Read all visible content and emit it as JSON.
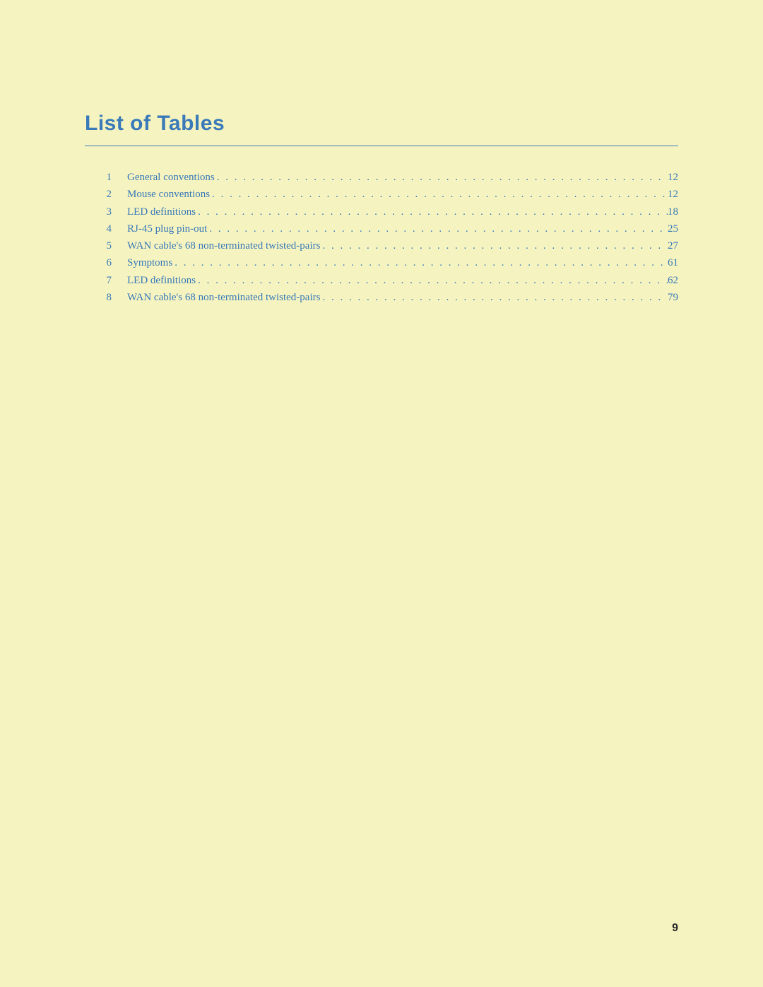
{
  "title": "List of Tables",
  "page_number": "9",
  "colors": {
    "background": "#f5f3c0",
    "accent": "#3a7ab8",
    "page_num": "#2a2a2a"
  },
  "entries": [
    {
      "num": "1",
      "label": "General conventions",
      "page": "12"
    },
    {
      "num": "2",
      "label": "Mouse conventions",
      "page": "12"
    },
    {
      "num": "3",
      "label": "LED definitions",
      "page": "18"
    },
    {
      "num": "4",
      "label": "RJ-45 plug pin-out",
      "page": "25"
    },
    {
      "num": "5",
      "label": "WAN cable's 68 non-terminated twisted-pairs",
      "page": "27"
    },
    {
      "num": "6",
      "label": "Symptoms",
      "page": "61"
    },
    {
      "num": "7",
      "label": "LED definitions",
      "page": "62"
    },
    {
      "num": "8",
      "label": "WAN cable's 68 non-terminated twisted-pairs",
      "page": "79"
    }
  ]
}
